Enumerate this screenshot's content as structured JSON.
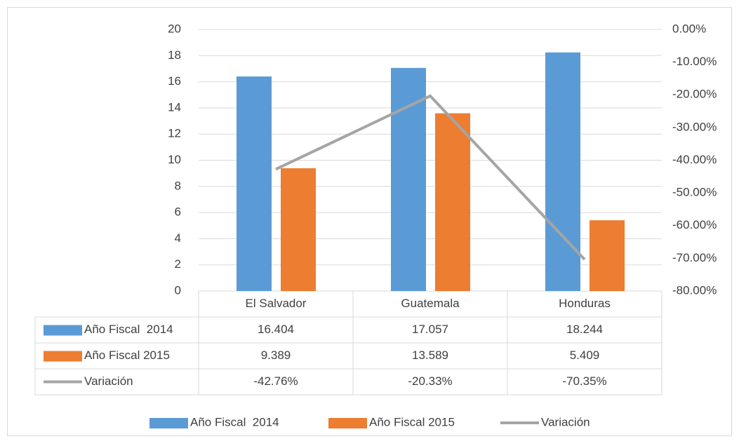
{
  "chart_data": {
    "type": "bar",
    "categories": [
      "El Salvador",
      "Guatemala",
      "Honduras"
    ],
    "series": [
      {
        "name": "Año Fiscal  2014",
        "color": "#5b9bd5",
        "values": [
          16.404,
          17.057,
          18.244
        ]
      },
      {
        "name": "Año Fiscal 2015",
        "color": "#ed7d31",
        "values": [
          9.389,
          13.589,
          5.409
        ]
      },
      {
        "name": "Variación",
        "color": "#a5a5a5",
        "type": "line",
        "axis": "y2",
        "values": [
          -42.76,
          -20.33,
          -70.35
        ],
        "value_labels": [
          "-42.76%",
          "-20.33%",
          "-70.35%"
        ]
      }
    ],
    "ylim": [
      0,
      20
    ],
    "yticks": [
      0,
      2,
      4,
      6,
      8,
      10,
      12,
      14,
      16,
      18,
      20
    ],
    "y2lim": [
      -80,
      0
    ],
    "y2ticks": [
      {
        "value": 0,
        "label": "0.00%"
      },
      {
        "value": -10,
        "label": "-10.00%"
      },
      {
        "value": -20,
        "label": "-20.00%"
      },
      {
        "value": -30,
        "label": "-30.00%"
      },
      {
        "value": -40,
        "label": "-40.00%"
      },
      {
        "value": -50,
        "label": "-50.00%"
      },
      {
        "value": -60,
        "label": "-60.00%"
      },
      {
        "value": -70,
        "label": "-70.00%"
      },
      {
        "value": -80,
        "label": "-80.00%"
      }
    ],
    "grid": true,
    "data_table": true,
    "legend": "bottom"
  }
}
